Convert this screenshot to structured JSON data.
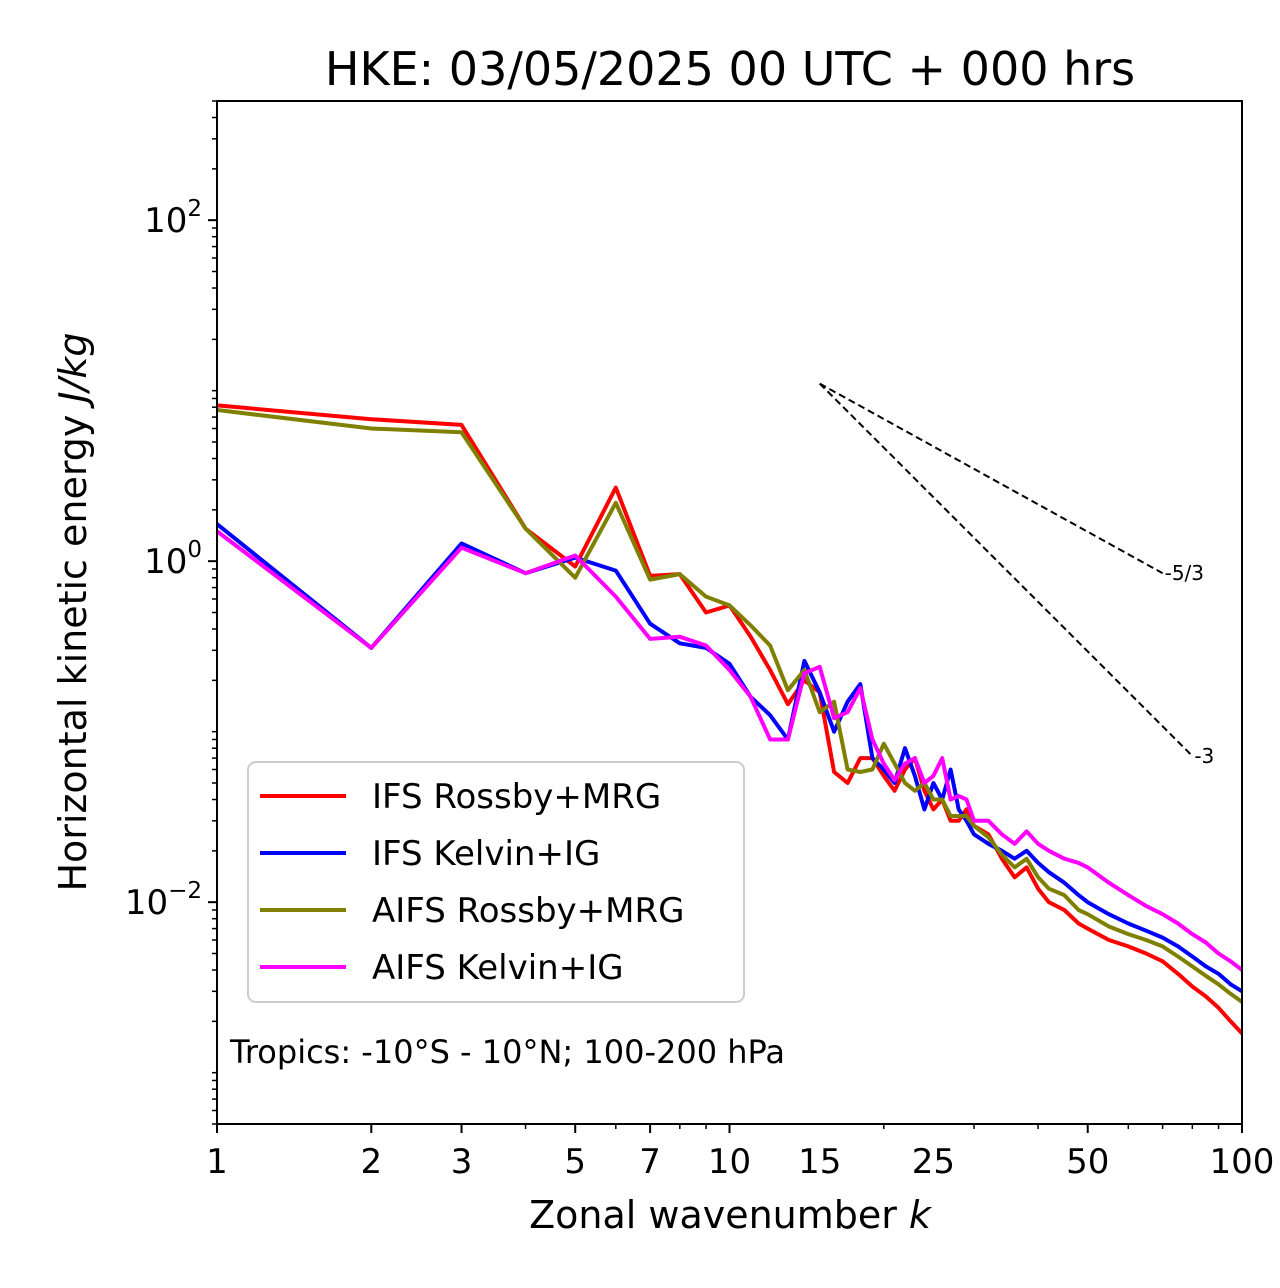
{
  "chart_data": {
    "type": "line",
    "title": "HKE: 03/05/2025 00 UTC + 000 hrs",
    "xlabel": "Zonal wavenumber",
    "xlabel_var": "k",
    "ylabel": "Horizontal kinetic energy",
    "ylabel_unit": "J/kg",
    "xscale": "log",
    "yscale": "log",
    "xlim": [
      1,
      100
    ],
    "ylim": [
      0.0005,
      500
    ],
    "xticks": [
      {
        "value": 1,
        "label": "1"
      },
      {
        "value": 2,
        "label": "2"
      },
      {
        "value": 3,
        "label": "3"
      },
      {
        "value": 5,
        "label": "5"
      },
      {
        "value": 7,
        "label": "7"
      },
      {
        "value": 10,
        "label": "10"
      },
      {
        "value": 15,
        "label": "15"
      },
      {
        "value": 25,
        "label": "25"
      },
      {
        "value": 50,
        "label": "50"
      },
      {
        "value": 100,
        "label": "100"
      }
    ],
    "yticks": [
      {
        "value": 100,
        "base": "10",
        "exp": "2"
      },
      {
        "value": 1,
        "base": "10",
        "exp": "0"
      },
      {
        "value": 0.01,
        "base": "10",
        "exp": "−2"
      }
    ],
    "grid": false,
    "legend_position": "lower-left",
    "annotation": "Tropics: -10°S - 10°N; 100-200 hPa",
    "reference_lines": [
      {
        "label": "-5/3",
        "slope": -1.6667,
        "x": [
          15,
          70
        ],
        "y": [
          11,
          0.85
        ]
      },
      {
        "label": "-3",
        "slope": -3,
        "x": [
          15,
          80
        ],
        "y": [
          11,
          0.072
        ]
      }
    ],
    "series": [
      {
        "name": "IFS Rossby+MRG",
        "color": "#ff0000",
        "x": [
          1,
          2,
          3,
          4,
          5,
          6,
          7,
          8,
          9,
          10,
          11,
          12,
          13,
          14,
          15,
          16,
          17,
          18,
          19,
          20,
          21,
          22,
          23,
          24,
          25,
          26,
          27,
          28,
          29,
          30,
          32,
          34,
          36,
          38,
          40,
          42,
          45,
          48,
          50,
          55,
          60,
          65,
          70,
          75,
          80,
          85,
          90,
          95,
          100
        ],
        "y": [
          8.2,
          6.8,
          6.3,
          1.55,
          0.93,
          2.7,
          0.82,
          0.84,
          0.5,
          0.55,
          0.36,
          0.23,
          0.145,
          0.2,
          0.17,
          0.058,
          0.05,
          0.07,
          0.07,
          0.055,
          0.045,
          0.06,
          0.07,
          0.045,
          0.035,
          0.04,
          0.03,
          0.03,
          0.035,
          0.028,
          0.025,
          0.018,
          0.014,
          0.016,
          0.012,
          0.01,
          0.009,
          0.0075,
          0.007,
          0.006,
          0.0055,
          0.005,
          0.0045,
          0.0038,
          0.0032,
          0.0028,
          0.0024,
          0.002,
          0.0017
        ]
      },
      {
        "name": "IFS Kelvin+IG",
        "color": "#0000ff",
        "x": [
          1,
          2,
          3,
          4,
          5,
          6,
          7,
          8,
          9,
          10,
          11,
          12,
          13,
          14,
          15,
          16,
          17,
          18,
          19,
          20,
          21,
          22,
          23,
          24,
          25,
          26,
          27,
          28,
          29,
          30,
          32,
          34,
          36,
          38,
          40,
          42,
          45,
          48,
          50,
          55,
          60,
          65,
          70,
          75,
          80,
          85,
          90,
          95,
          100
        ],
        "y": [
          1.65,
          0.31,
          1.27,
          0.85,
          1.05,
          0.88,
          0.43,
          0.33,
          0.31,
          0.25,
          0.16,
          0.125,
          0.09,
          0.26,
          0.17,
          0.1,
          0.15,
          0.19,
          0.07,
          0.06,
          0.05,
          0.08,
          0.055,
          0.035,
          0.05,
          0.04,
          0.06,
          0.035,
          0.03,
          0.025,
          0.022,
          0.02,
          0.018,
          0.02,
          0.017,
          0.015,
          0.013,
          0.011,
          0.01,
          0.0085,
          0.0075,
          0.0068,
          0.0062,
          0.0055,
          0.0048,
          0.0042,
          0.0038,
          0.0033,
          0.003
        ]
      },
      {
        "name": "AIFS Rossby+MRG",
        "color": "#808000",
        "x": [
          1,
          2,
          3,
          4,
          5,
          6,
          7,
          8,
          9,
          10,
          11,
          12,
          13,
          14,
          15,
          16,
          17,
          18,
          19,
          20,
          21,
          22,
          23,
          24,
          25,
          26,
          27,
          28,
          29,
          30,
          32,
          34,
          36,
          38,
          40,
          42,
          45,
          48,
          50,
          55,
          60,
          65,
          70,
          75,
          80,
          85,
          90,
          95,
          100
        ],
        "y": [
          7.7,
          6.0,
          5.7,
          1.55,
          0.8,
          2.2,
          0.78,
          0.84,
          0.62,
          0.55,
          0.42,
          0.32,
          0.175,
          0.23,
          0.13,
          0.15,
          0.06,
          0.058,
          0.06,
          0.085,
          0.065,
          0.05,
          0.045,
          0.05,
          0.04,
          0.04,
          0.032,
          0.032,
          0.032,
          0.028,
          0.024,
          0.019,
          0.016,
          0.018,
          0.014,
          0.012,
          0.011,
          0.009,
          0.0085,
          0.0072,
          0.0065,
          0.006,
          0.0055,
          0.0048,
          0.0042,
          0.0037,
          0.0033,
          0.0029,
          0.0026
        ]
      },
      {
        "name": "AIFS Kelvin+IG",
        "color": "#ff00ff",
        "x": [
          1,
          2,
          3,
          4,
          5,
          6,
          7,
          8,
          9,
          10,
          11,
          12,
          13,
          14,
          15,
          16,
          17,
          18,
          19,
          20,
          21,
          22,
          23,
          24,
          25,
          26,
          27,
          28,
          29,
          30,
          32,
          34,
          36,
          38,
          40,
          42,
          45,
          48,
          50,
          55,
          60,
          65,
          70,
          75,
          80,
          85,
          90,
          95,
          100
        ],
        "y": [
          1.5,
          0.31,
          1.2,
          0.85,
          1.08,
          0.62,
          0.35,
          0.36,
          0.32,
          0.23,
          0.16,
          0.09,
          0.09,
          0.22,
          0.24,
          0.12,
          0.13,
          0.18,
          0.09,
          0.065,
          0.052,
          0.065,
          0.07,
          0.05,
          0.055,
          0.07,
          0.04,
          0.042,
          0.04,
          0.03,
          0.03,
          0.025,
          0.022,
          0.026,
          0.022,
          0.02,
          0.018,
          0.017,
          0.016,
          0.013,
          0.011,
          0.0095,
          0.0085,
          0.0075,
          0.0065,
          0.0058,
          0.005,
          0.0045,
          0.004
        ]
      }
    ]
  }
}
